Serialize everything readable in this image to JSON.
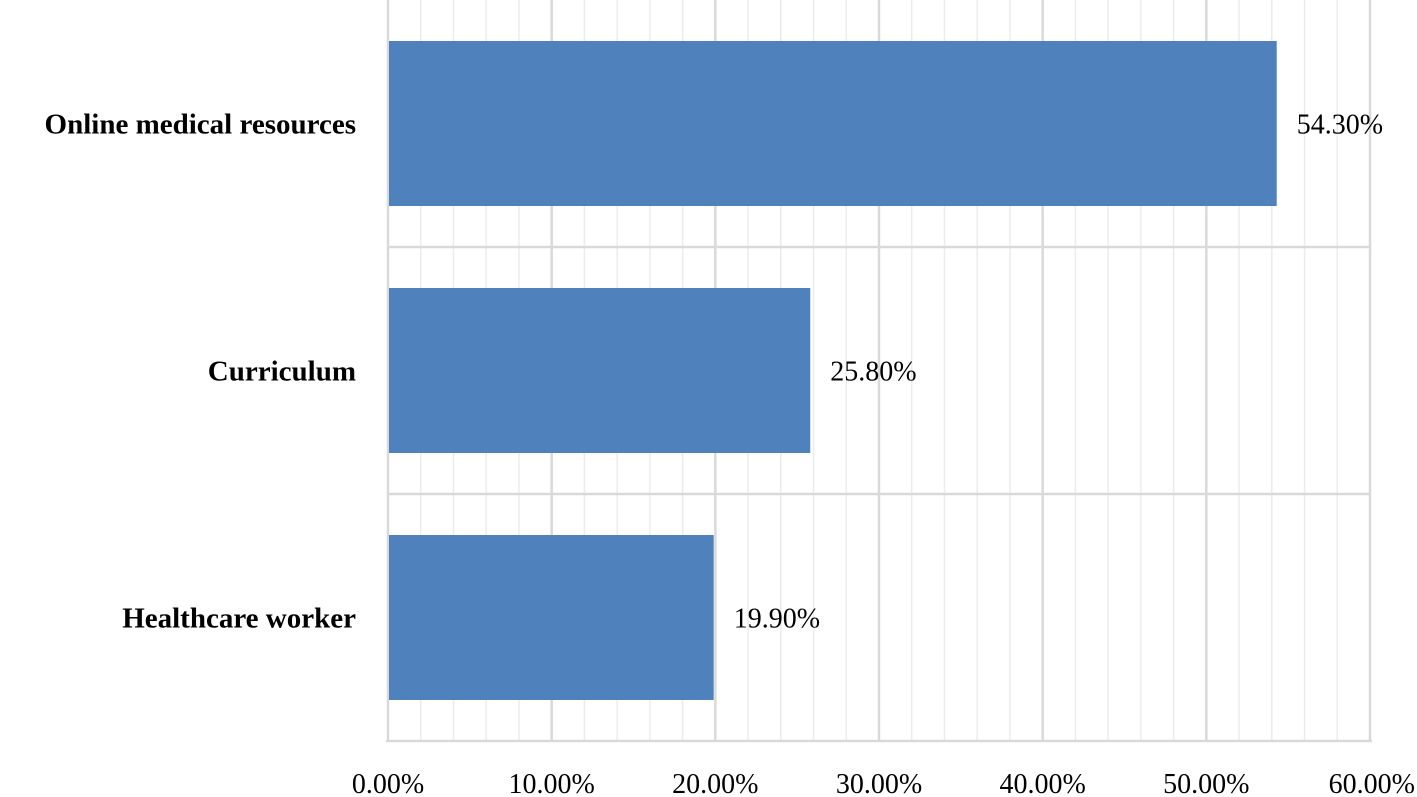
{
  "chart_data": {
    "type": "bar",
    "orientation": "horizontal",
    "title": "",
    "xlabel": "",
    "ylabel": "",
    "categories": [
      "Online medical resources",
      "Curriculum",
      "Healthcare worker"
    ],
    "values": [
      54.3,
      25.8,
      19.9
    ],
    "value_labels": [
      "54.30%",
      "25.80%",
      "19.90%"
    ],
    "xlim": [
      0,
      60
    ],
    "x_ticks": [
      0,
      10,
      20,
      30,
      40,
      50,
      60
    ],
    "x_tick_labels": [
      "0.00%",
      "10.00%",
      "20.00%",
      "30.00%",
      "40.00%",
      "50.00%",
      "60.00%"
    ],
    "minor_x_step": 2,
    "grid": true,
    "legend": "none",
    "bar_color": "#4f81bd",
    "major_grid_color": "#d9d9d9",
    "minor_grid_color": "#ececec"
  }
}
